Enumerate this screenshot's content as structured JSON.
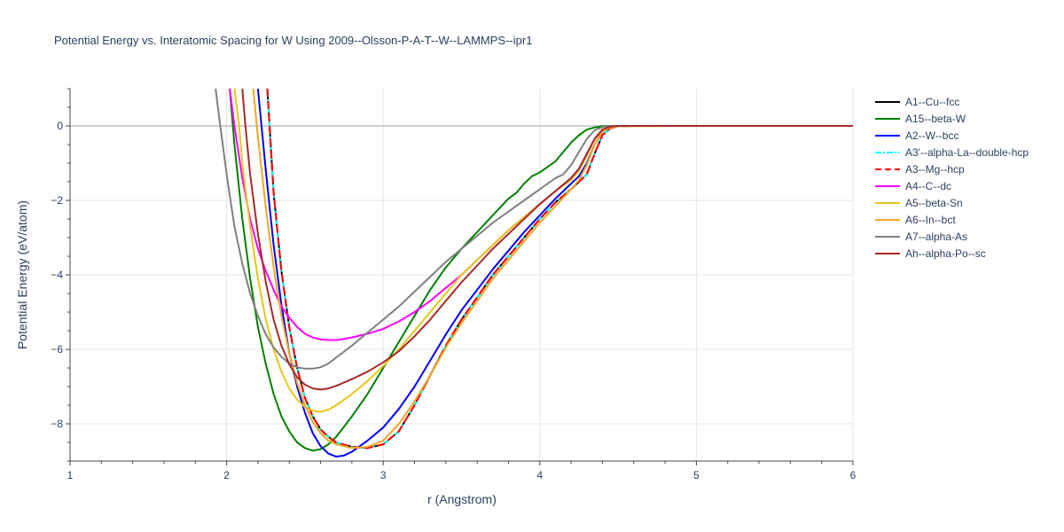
{
  "chart_data": {
    "type": "line",
    "title": "Potential Energy vs. Interatomic Spacing for W Using 2009--Olsson-P-A-T--W--LAMMPS--ipr1",
    "xlabel": "r (Angstrom)",
    "ylabel": "Potential Energy (eV/atom)",
    "xlim": [
      1,
      6
    ],
    "ylim": [
      -9,
      1
    ],
    "xticks": [
      1,
      2,
      3,
      4,
      5,
      6
    ],
    "yticks": [
      0,
      -2,
      -4,
      -6,
      -8
    ],
    "grid": true,
    "legend_position": "right",
    "series": [
      {
        "name": "A1--Cu--fcc",
        "color": "#000000",
        "dash": "solid",
        "x": [
          2.26,
          2.3,
          2.35,
          2.4,
          2.45,
          2.5,
          2.55,
          2.6,
          2.65,
          2.7,
          2.8,
          2.9,
          3.0,
          3.1,
          3.2,
          3.3,
          3.4,
          3.5,
          3.6,
          3.7,
          3.8,
          3.9,
          4.0,
          4.1,
          4.2,
          4.3,
          4.35,
          4.4,
          4.45,
          4.5,
          4.6,
          5.0,
          6.0
        ],
        "y": [
          1.0,
          -1.8,
          -3.9,
          -5.4,
          -6.5,
          -7.3,
          -7.8,
          -8.15,
          -8.35,
          -8.5,
          -8.62,
          -8.65,
          -8.55,
          -8.2,
          -7.5,
          -6.7,
          -5.9,
          -5.2,
          -4.6,
          -4.0,
          -3.5,
          -3.0,
          -2.5,
          -2.05,
          -1.7,
          -1.3,
          -0.75,
          -0.25,
          -0.06,
          -0.01,
          0,
          0,
          0
        ]
      },
      {
        "name": "A15--beta-W",
        "color": "#008000",
        "dash": "solid",
        "x": [
          2.02,
          2.05,
          2.1,
          2.15,
          2.2,
          2.25,
          2.3,
          2.35,
          2.4,
          2.45,
          2.5,
          2.55,
          2.6,
          2.65,
          2.7,
          2.8,
          2.9,
          3.0,
          3.1,
          3.2,
          3.3,
          3.4,
          3.5,
          3.6,
          3.7,
          3.8,
          3.85,
          3.9,
          3.95,
          4.0,
          4.05,
          4.1,
          4.15,
          4.2,
          4.25,
          4.3,
          4.35,
          4.4,
          4.45,
          4.5,
          5.0,
          6.0
        ],
        "y": [
          1.0,
          -0.5,
          -2.5,
          -4.1,
          -5.4,
          -6.4,
          -7.2,
          -7.8,
          -8.2,
          -8.5,
          -8.65,
          -8.72,
          -8.68,
          -8.55,
          -8.35,
          -7.8,
          -7.2,
          -6.5,
          -5.8,
          -5.1,
          -4.4,
          -3.8,
          -3.3,
          -2.85,
          -2.4,
          -1.95,
          -1.8,
          -1.55,
          -1.35,
          -1.25,
          -1.1,
          -0.95,
          -0.7,
          -0.45,
          -0.25,
          -0.1,
          -0.04,
          -0.01,
          0,
          0,
          0,
          0
        ]
      },
      {
        "name": "A2--W--bcc",
        "color": "#0000ff",
        "dash": "solid",
        "x": [
          2.2,
          2.25,
          2.3,
          2.35,
          2.4,
          2.45,
          2.5,
          2.55,
          2.6,
          2.65,
          2.7,
          2.75,
          2.8,
          2.9,
          3.0,
          3.1,
          3.2,
          3.3,
          3.4,
          3.5,
          3.6,
          3.7,
          3.8,
          3.9,
          4.0,
          4.1,
          4.2,
          4.25,
          4.3,
          4.35,
          4.4,
          4.45,
          4.5,
          4.6,
          5.0,
          6.0
        ],
        "y": [
          1.0,
          -1.2,
          -3.2,
          -4.8,
          -6.1,
          -7.0,
          -7.7,
          -8.25,
          -8.6,
          -8.8,
          -8.88,
          -8.85,
          -8.75,
          -8.45,
          -8.1,
          -7.6,
          -7.0,
          -6.3,
          -5.6,
          -4.95,
          -4.4,
          -3.85,
          -3.35,
          -2.85,
          -2.4,
          -1.95,
          -1.55,
          -1.35,
          -1.0,
          -0.5,
          -0.15,
          -0.04,
          -0.01,
          0,
          0,
          0
        ]
      },
      {
        "name": "A3'--alpha-La--double-hcp",
        "color": "#00ffff",
        "dash": "dashdot",
        "x": [
          2.26,
          2.3,
          2.35,
          2.4,
          2.45,
          2.5,
          2.55,
          2.6,
          2.65,
          2.7,
          2.8,
          2.9,
          3.0,
          3.1,
          3.2,
          3.3,
          3.4,
          3.5,
          3.6,
          3.7,
          3.8,
          3.9,
          4.0,
          4.1,
          4.2,
          4.3,
          4.35,
          4.4,
          4.45,
          4.5,
          4.6,
          5.0,
          6.0
        ],
        "y": [
          1.0,
          -1.8,
          -3.9,
          -5.4,
          -6.5,
          -7.3,
          -7.8,
          -8.15,
          -8.35,
          -8.5,
          -8.62,
          -8.65,
          -8.55,
          -8.2,
          -7.5,
          -6.7,
          -5.9,
          -5.2,
          -4.6,
          -4.0,
          -3.5,
          -3.0,
          -2.5,
          -2.05,
          -1.7,
          -1.3,
          -0.75,
          -0.25,
          -0.06,
          -0.01,
          0,
          0,
          0
        ]
      },
      {
        "name": "A3--Mg--hcp",
        "color": "#ff0000",
        "dash": "dash",
        "x": [
          2.26,
          2.3,
          2.35,
          2.4,
          2.45,
          2.5,
          2.55,
          2.6,
          2.65,
          2.7,
          2.8,
          2.9,
          3.0,
          3.1,
          3.2,
          3.3,
          3.4,
          3.5,
          3.6,
          3.7,
          3.8,
          3.9,
          4.0,
          4.1,
          4.2,
          4.3,
          4.35,
          4.4,
          4.45,
          4.5,
          4.6,
          5.0,
          6.0
        ],
        "y": [
          1.0,
          -1.8,
          -3.9,
          -5.4,
          -6.5,
          -7.3,
          -7.8,
          -8.15,
          -8.35,
          -8.5,
          -8.62,
          -8.65,
          -8.55,
          -8.2,
          -7.5,
          -6.7,
          -5.9,
          -5.2,
          -4.6,
          -4.0,
          -3.5,
          -3.0,
          -2.5,
          -2.05,
          -1.7,
          -1.3,
          -0.75,
          -0.25,
          -0.06,
          -0.01,
          0,
          0,
          0
        ]
      },
      {
        "name": "A4--C--dc",
        "color": "#ff00ff",
        "dash": "solid",
        "x": [
          2.02,
          2.05,
          2.1,
          2.15,
          2.2,
          2.25,
          2.3,
          2.35,
          2.4,
          2.45,
          2.5,
          2.55,
          2.6,
          2.65,
          2.7,
          2.75,
          2.8,
          2.9,
          3.0,
          3.1,
          3.2,
          3.3,
          3.4,
          3.5,
          3.6,
          3.7,
          3.8,
          3.9,
          4.0,
          4.1,
          4.2,
          4.25,
          4.3,
          4.35,
          4.4,
          4.45,
          4.5,
          5.0,
          6.0
        ],
        "y": [
          1.0,
          0.0,
          -1.4,
          -2.5,
          -3.3,
          -3.9,
          -4.4,
          -4.85,
          -5.15,
          -5.4,
          -5.58,
          -5.68,
          -5.73,
          -5.75,
          -5.75,
          -5.72,
          -5.68,
          -5.58,
          -5.45,
          -5.25,
          -5.0,
          -4.7,
          -4.35,
          -4.0,
          -3.6,
          -3.2,
          -2.8,
          -2.45,
          -2.1,
          -1.75,
          -1.4,
          -1.15,
          -0.75,
          -0.35,
          -0.1,
          -0.02,
          0,
          0,
          0
        ]
      },
      {
        "name": "A5--beta-Sn",
        "color": "#e6c619",
        "dash": "solid",
        "x": [
          2.05,
          2.08,
          2.1,
          2.15,
          2.2,
          2.25,
          2.3,
          2.35,
          2.4,
          2.45,
          2.5,
          2.55,
          2.6,
          2.65,
          2.7,
          2.8,
          2.9,
          3.0,
          3.1,
          3.2,
          3.3,
          3.4,
          3.5,
          3.6,
          3.7,
          3.8,
          3.9,
          4.0,
          4.1,
          4.2,
          4.25,
          4.3,
          4.35,
          4.4,
          4.45,
          4.5,
          5.0,
          6.0
        ],
        "y": [
          1.0,
          0.0,
          -1.0,
          -2.7,
          -4.1,
          -5.2,
          -6.0,
          -6.6,
          -7.05,
          -7.35,
          -7.55,
          -7.65,
          -7.68,
          -7.62,
          -7.5,
          -7.2,
          -6.85,
          -6.45,
          -6.0,
          -5.5,
          -5.0,
          -4.5,
          -4.0,
          -3.6,
          -3.2,
          -2.8,
          -2.45,
          -2.1,
          -1.75,
          -1.45,
          -1.2,
          -0.8,
          -0.35,
          -0.1,
          -0.02,
          0,
          0,
          0
        ]
      },
      {
        "name": "A6--In--bct",
        "color": "#f5a623",
        "dash": "solid",
        "x": [
          2.17,
          2.2,
          2.25,
          2.3,
          2.35,
          2.4,
          2.45,
          2.5,
          2.55,
          2.6,
          2.65,
          2.7,
          2.8,
          2.9,
          3.0,
          3.1,
          3.2,
          3.3,
          3.4,
          3.5,
          3.6,
          3.7,
          3.8,
          3.9,
          4.0,
          4.1,
          4.2,
          4.25,
          4.3,
          4.35,
          4.4,
          4.45,
          4.5,
          5.0,
          6.0
        ],
        "y": [
          1.0,
          -0.3,
          -2.2,
          -3.8,
          -5.1,
          -6.1,
          -6.9,
          -7.5,
          -7.95,
          -8.25,
          -8.45,
          -8.55,
          -8.65,
          -8.62,
          -8.45,
          -8.0,
          -7.4,
          -6.7,
          -5.95,
          -5.3,
          -4.7,
          -4.1,
          -3.6,
          -3.1,
          -2.6,
          -2.15,
          -1.7,
          -1.45,
          -1.05,
          -0.5,
          -0.15,
          -0.04,
          -0.01,
          0,
          0
        ]
      },
      {
        "name": "A7--alpha-As",
        "color": "#808080",
        "dash": "solid",
        "x": [
          1.93,
          1.95,
          2.0,
          2.05,
          2.1,
          2.15,
          2.2,
          2.25,
          2.3,
          2.35,
          2.4,
          2.45,
          2.5,
          2.55,
          2.6,
          2.65,
          2.7,
          2.8,
          2.9,
          3.0,
          3.1,
          3.2,
          3.3,
          3.4,
          3.5,
          3.6,
          3.7,
          3.8,
          3.9,
          4.0,
          4.1,
          4.15,
          4.2,
          4.25,
          4.3,
          4.35,
          4.4,
          4.45,
          4.5,
          5.0,
          6.0
        ],
        "y": [
          1.0,
          0.3,
          -1.3,
          -2.7,
          -3.7,
          -4.5,
          -5.1,
          -5.6,
          -5.95,
          -6.2,
          -6.38,
          -6.48,
          -6.52,
          -6.52,
          -6.48,
          -6.38,
          -6.22,
          -5.9,
          -5.55,
          -5.2,
          -4.85,
          -4.45,
          -4.05,
          -3.65,
          -3.3,
          -2.95,
          -2.6,
          -2.3,
          -2.0,
          -1.7,
          -1.4,
          -1.3,
          -1.05,
          -0.7,
          -0.35,
          -0.12,
          -0.03,
          0,
          0,
          0,
          0
        ]
      },
      {
        "name": "Ah--alpha-Po--sc",
        "color": "#a52a2a",
        "dash": "solid",
        "x": [
          2.1,
          2.12,
          2.15,
          2.2,
          2.25,
          2.3,
          2.35,
          2.4,
          2.45,
          2.5,
          2.55,
          2.6,
          2.65,
          2.7,
          2.8,
          2.9,
          3.0,
          3.1,
          3.2,
          3.3,
          3.4,
          3.5,
          3.6,
          3.7,
          3.8,
          3.9,
          4.0,
          4.1,
          4.2,
          4.25,
          4.3,
          4.35,
          4.4,
          4.45,
          4.5,
          5.0,
          6.0
        ],
        "y": [
          1.0,
          0.0,
          -1.3,
          -2.9,
          -4.2,
          -5.2,
          -5.9,
          -6.4,
          -6.75,
          -6.95,
          -7.05,
          -7.08,
          -7.05,
          -6.98,
          -6.8,
          -6.6,
          -6.35,
          -6.05,
          -5.65,
          -5.2,
          -4.7,
          -4.2,
          -3.75,
          -3.3,
          -2.9,
          -2.5,
          -2.1,
          -1.75,
          -1.4,
          -1.15,
          -0.75,
          -0.35,
          -0.1,
          -0.02,
          0,
          0,
          0
        ]
      }
    ]
  }
}
